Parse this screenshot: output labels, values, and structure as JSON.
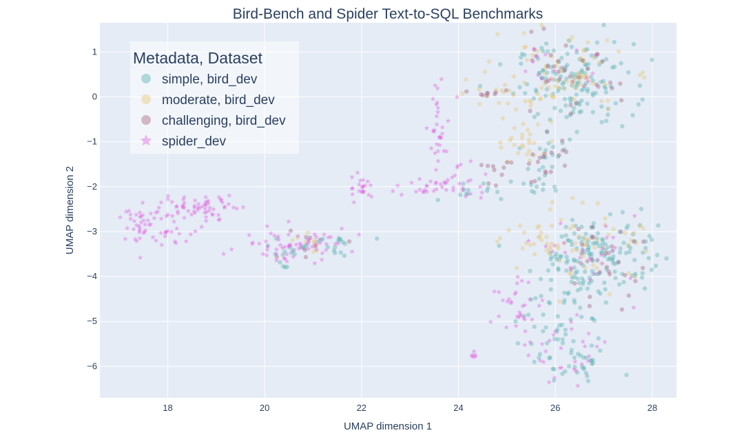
{
  "chart_data": {
    "type": "scatter",
    "title": "Bird-Bench and Spider Text-to-SQL Benchmarks",
    "xlabel": "UMAP dimension 1",
    "ylabel": "UMAP dimension 2",
    "xlim": [
      16.6,
      28.5
    ],
    "ylim": [
      -6.7,
      1.65
    ],
    "xticks": [
      18,
      20,
      22,
      24,
      26,
      28
    ],
    "yticks": [
      1,
      0,
      -1,
      -2,
      -3,
      -4,
      -5,
      -6
    ],
    "yticklabels": [
      "1",
      "0",
      "−1",
      "−2",
      "−3",
      "−4",
      "−5",
      "−6"
    ],
    "grid": true,
    "legend": {
      "title": "Metadata, Dataset",
      "placement": "top-left"
    },
    "series": [
      {
        "name": "simple, bird_dev",
        "marker": "circle",
        "color": "#5fb3b3",
        "clusters": [
          {
            "cx": 26.4,
            "cy": 0.3,
            "sx": 0.6,
            "sy": 0.45,
            "n": 140
          },
          {
            "cx": 27.0,
            "cy": -3.4,
            "sx": 0.55,
            "sy": 0.45,
            "n": 110
          },
          {
            "cx": 26.2,
            "cy": -4.3,
            "sx": 0.5,
            "sy": 0.6,
            "n": 70
          },
          {
            "cx": 26.3,
            "cy": -5.8,
            "sx": 0.45,
            "sy": 0.35,
            "n": 45
          },
          {
            "cx": 25.7,
            "cy": -1.9,
            "sx": 0.25,
            "sy": 0.2,
            "n": 15
          },
          {
            "cx": 24.2,
            "cy": -2.1,
            "sx": 0.25,
            "sy": 0.15,
            "n": 12
          },
          {
            "cx": 20.4,
            "cy": -3.4,
            "sx": 0.3,
            "sy": 0.15,
            "n": 15
          },
          {
            "cx": 21.3,
            "cy": -3.3,
            "sx": 0.35,
            "sy": 0.15,
            "n": 18
          },
          {
            "cx": 25.9,
            "cy": -1.2,
            "sx": 0.3,
            "sy": 0.25,
            "n": 15
          }
        ]
      },
      {
        "name": "moderate, bird_dev",
        "marker": "circle",
        "color": "#e6c77a",
        "clusters": [
          {
            "cx": 26.0,
            "cy": 0.4,
            "sx": 0.7,
            "sy": 0.45,
            "n": 80
          },
          {
            "cx": 26.8,
            "cy": -3.2,
            "sx": 0.6,
            "sy": 0.45,
            "n": 50
          },
          {
            "cx": 25.4,
            "cy": -1.0,
            "sx": 0.35,
            "sy": 0.35,
            "n": 25
          },
          {
            "cx": 25.5,
            "cy": -3.3,
            "sx": 0.3,
            "sy": 0.2,
            "n": 20
          },
          {
            "cx": 24.6,
            "cy": 0.1,
            "sx": 0.3,
            "sy": 0.1,
            "n": 10
          },
          {
            "cx": 21.0,
            "cy": -3.3,
            "sx": 0.4,
            "sy": 0.15,
            "n": 10
          }
        ]
      },
      {
        "name": "challenging, bird_dev",
        "marker": "circle",
        "color": "#a86a80",
        "clusters": [
          {
            "cx": 26.1,
            "cy": 0.4,
            "sx": 0.6,
            "sy": 0.4,
            "n": 35
          },
          {
            "cx": 26.9,
            "cy": -3.7,
            "sx": 0.45,
            "sy": 0.4,
            "n": 30
          },
          {
            "cx": 25.8,
            "cy": -1.5,
            "sx": 0.25,
            "sy": 0.35,
            "n": 18
          },
          {
            "cx": 24.9,
            "cy": -1.6,
            "sx": 0.3,
            "sy": 0.2,
            "n": 10
          },
          {
            "cx": 24.6,
            "cy": 0.1,
            "sx": 0.2,
            "sy": 0.08,
            "n": 8
          },
          {
            "cx": 20.9,
            "cy": -3.2,
            "sx": 0.4,
            "sy": 0.15,
            "n": 8
          }
        ]
      },
      {
        "name": "spider_dev",
        "marker": "star",
        "color": "#e066e0",
        "clusters": [
          {
            "cx": 17.5,
            "cy": -2.85,
            "sx": 0.2,
            "sy": 0.22,
            "n": 40
          },
          {
            "cx": 18.5,
            "cy": -2.5,
            "sx": 0.5,
            "sy": 0.15,
            "n": 45
          },
          {
            "cx": 18.2,
            "cy": -3.1,
            "sx": 0.35,
            "sy": 0.15,
            "n": 15
          },
          {
            "cx": 19.0,
            "cy": -2.4,
            "sx": 0.4,
            "sy": 0.12,
            "n": 20
          },
          {
            "cx": 20.3,
            "cy": -3.3,
            "sx": 0.45,
            "sy": 0.18,
            "n": 35
          },
          {
            "cx": 21.0,
            "cy": -3.2,
            "sx": 0.45,
            "sy": 0.15,
            "n": 30
          },
          {
            "cx": 22.0,
            "cy": -2.0,
            "sx": 0.12,
            "sy": 0.2,
            "n": 22
          },
          {
            "cx": 23.4,
            "cy": -2.0,
            "sx": 0.35,
            "sy": 0.12,
            "n": 20
          },
          {
            "cx": 23.6,
            "cy": -0.7,
            "sx": 0.15,
            "sy": 0.4,
            "n": 30
          },
          {
            "cx": 24.1,
            "cy": -1.9,
            "sx": 0.25,
            "sy": 0.3,
            "n": 25
          },
          {
            "cx": 25.2,
            "cy": -4.8,
            "sx": 0.35,
            "sy": 0.5,
            "n": 35
          },
          {
            "cx": 26.4,
            "cy": -5.8,
            "sx": 0.4,
            "sy": 0.3,
            "n": 25
          },
          {
            "cx": 26.8,
            "cy": -3.6,
            "sx": 0.45,
            "sy": 0.45,
            "n": 25
          },
          {
            "cx": 26.0,
            "cy": 0.7,
            "sx": 0.5,
            "sy": 0.3,
            "n": 15
          },
          {
            "cx": 24.3,
            "cy": -5.72,
            "sx": 0.04,
            "sy": 0.04,
            "n": 6
          }
        ]
      }
    ]
  }
}
